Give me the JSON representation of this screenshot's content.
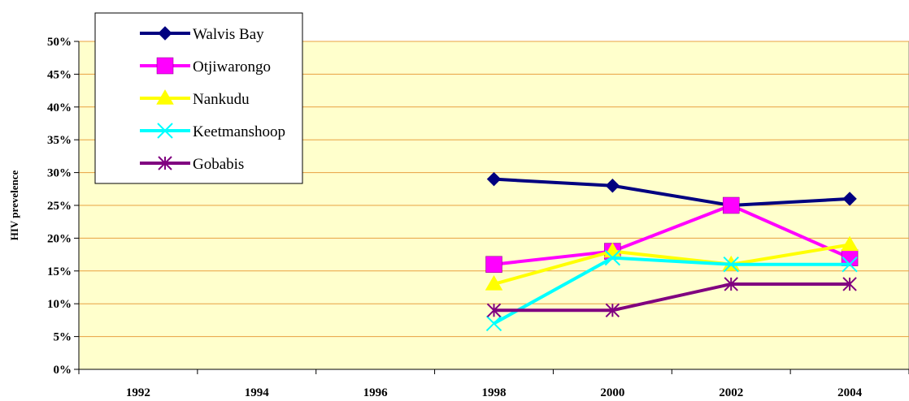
{
  "chart_data": {
    "type": "line",
    "ylabel": "HIV prevelence",
    "x": [
      "1992",
      "1994",
      "1996",
      "1998",
      "2000",
      "2002",
      "2004"
    ],
    "y_ticks": [
      "0%",
      "5%",
      "10%",
      "15%",
      "20%",
      "25%",
      "30%",
      "35%",
      "40%",
      "45%",
      "50%"
    ],
    "ylim": [
      0,
      50
    ],
    "grid": true,
    "legend_position": "top-left",
    "plot_background": "#FFFFCC",
    "gridline_color": "#E8A040",
    "series": [
      {
        "name": "Walvis Bay",
        "color": "#000080",
        "marker": "diamond",
        "values": [
          null,
          null,
          null,
          29,
          28,
          25,
          26
        ]
      },
      {
        "name": "Otjiwarongo",
        "color": "#FF00FF",
        "marker": "square",
        "values": [
          null,
          null,
          null,
          16,
          18,
          25,
          17
        ]
      },
      {
        "name": "Nankudu",
        "color": "#FFFF00",
        "marker": "triangle",
        "values": [
          null,
          null,
          null,
          13,
          18,
          16,
          19
        ]
      },
      {
        "name": "Keetmanshoop",
        "color": "#00FFFF",
        "marker": "x",
        "values": [
          null,
          null,
          null,
          7,
          17,
          16,
          16
        ]
      },
      {
        "name": "Gobabis",
        "color": "#800080",
        "marker": "asterisk",
        "values": [
          null,
          null,
          null,
          9,
          9,
          13,
          13
        ]
      }
    ]
  }
}
